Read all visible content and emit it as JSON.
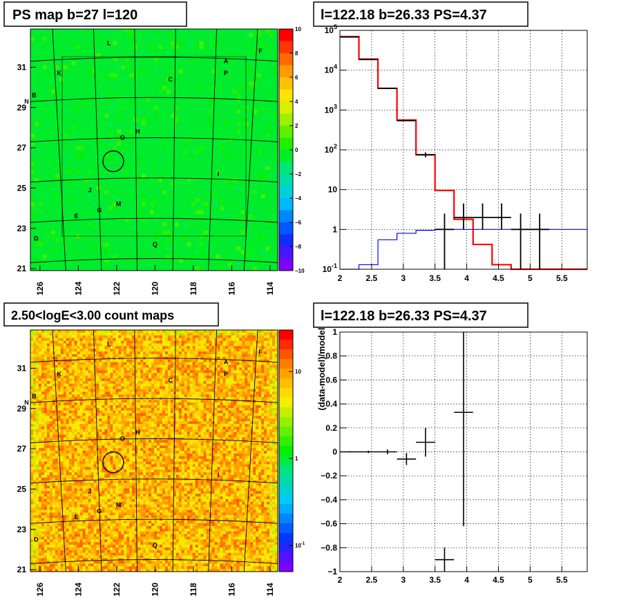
{
  "panels": {
    "ps_map": {
      "title": "PS map b=27 l=120",
      "xticks": [
        "126",
        "124",
        "122",
        "120",
        "118",
        "116",
        "114"
      ],
      "yticks": [
        "31",
        "29",
        "27",
        "25",
        "23",
        "21"
      ],
      "colorbar_ticks": [
        "10",
        "8",
        "6",
        "4",
        "2",
        "0",
        "−2",
        "−4",
        "−6",
        "−8",
        "−10"
      ],
      "source_labels": [
        {
          "t": "L",
          "l": 122.4,
          "b": 32.1
        },
        {
          "t": "F",
          "l": 114.5,
          "b": 31.7
        },
        {
          "t": "A",
          "l": 116.3,
          "b": 31.2
        },
        {
          "t": "K",
          "l": 125.0,
          "b": 30.6
        },
        {
          "t": "P",
          "l": 116.3,
          "b": 30.6
        },
        {
          "t": "C",
          "l": 119.2,
          "b": 30.3
        },
        {
          "t": "B",
          "l": 126.3,
          "b": 29.5
        },
        {
          "t": "N",
          "l": 126.7,
          "b": 29.2
        },
        {
          "t": "H",
          "l": 120.9,
          "b": 27.7
        },
        {
          "t": "O",
          "l": 121.7,
          "b": 27.4
        },
        {
          "t": "I",
          "l": 116.7,
          "b": 25.6
        },
        {
          "t": "J",
          "l": 123.4,
          "b": 24.8
        },
        {
          "t": "G",
          "l": 122.9,
          "b": 23.8
        },
        {
          "t": "M",
          "l": 121.9,
          "b": 24.1
        },
        {
          "t": "E",
          "l": 124.1,
          "b": 23.5
        },
        {
          "t": "D",
          "l": 126.2,
          "b": 22.4
        },
        {
          "t": "Q",
          "l": 120.0,
          "b": 22.1
        }
      ],
      "marker": {
        "l": 122.18,
        "b": 26.33
      }
    },
    "spectrum": {
      "title": "l=122.18 b=26.33 PS=4.37"
    },
    "count_map": {
      "title": "2.50<logE<3.00 count maps",
      "colorbar_ticks": [
        {
          "t": "10",
          "v": 10
        },
        {
          "t": "1",
          "v": 1
        }
      ],
      "colorbar_exp": {
        "base": "10",
        "exp": "-1"
      }
    },
    "residual": {
      "title": "l=122.18 b=26.33 PS=4.37"
    }
  },
  "chart_data": [
    {
      "type": "heatmap",
      "title": "PS map b=27 l=120",
      "xlabel": "",
      "ylabel": "",
      "xlim": [
        126.5,
        113.6
      ],
      "ylim": [
        20.9,
        32.9
      ],
      "zlim": [
        -10,
        10
      ],
      "colorscale": "rainbow",
      "background_value": 0.5
    },
    {
      "type": "line",
      "title": "l=122.18 b=26.33 PS=4.37",
      "xlim": [
        2,
        5.9
      ],
      "ylim": [
        0.1,
        100000
      ],
      "ylog": true,
      "xticks": [
        "2",
        "2.5",
        "3",
        "3.5",
        "4",
        "4.5",
        "5",
        "5.5"
      ],
      "yticks": [
        {
          "v": 0.1,
          "base": "10",
          "exp": "-1"
        },
        {
          "v": 1,
          "t": "1"
        },
        {
          "v": 10,
          "t": "10"
        },
        {
          "v": 100,
          "base": "10",
          "exp": "2"
        },
        {
          "v": 1000,
          "base": "10",
          "exp": "3"
        },
        {
          "v": 10000,
          "base": "10",
          "exp": "4"
        },
        {
          "v": 100000,
          "base": "10",
          "exp": "5"
        }
      ],
      "bin_edges": [
        2.0,
        2.3,
        2.6,
        2.9,
        3.2,
        3.5,
        3.8,
        4.1,
        4.4,
        4.7,
        5.0,
        5.3,
        5.6,
        5.9
      ],
      "series": [
        {
          "color": "#ff0000",
          "values": [
            70000,
            19000,
            3500,
            560,
            75,
            9.5,
            1.8,
            0.42,
            0.13,
            0.1,
            0.1,
            0.1,
            0.1
          ]
        },
        {
          "color": "#0000ff",
          "values": [
            0.1,
            0.13,
            0.55,
            0.8,
            0.95,
            1.0,
            1.0,
            1.0,
            1.0,
            1.0,
            1.0,
            1.0,
            1.0
          ]
        }
      ],
      "data_points": [
        {
          "x": 2.15,
          "y": 68000,
          "xe": 0.15,
          "lo": 0,
          "hi": 0
        },
        {
          "x": 2.45,
          "y": 18500,
          "xe": 0.15,
          "lo": 0,
          "hi": 0
        },
        {
          "x": 2.75,
          "y": 3500,
          "xe": 0.15,
          "lo": 0,
          "hi": 0
        },
        {
          "x": 3.05,
          "y": 540,
          "xe": 0.15,
          "lo": 0,
          "hi": 0
        },
        {
          "x": 3.35,
          "y": 75,
          "xe": 0.15,
          "lo": 65,
          "hi": 86
        },
        {
          "x": 3.65,
          "y": 1.0,
          "xe": 0.15,
          "lo": 0.1,
          "hi": 2.5
        },
        {
          "x": 3.95,
          "y": 2.0,
          "xe": 0.15,
          "lo": 1.0,
          "hi": 4.5
        },
        {
          "x": 4.25,
          "y": 2.0,
          "xe": 0.15,
          "lo": 1.0,
          "hi": 4.5
        },
        {
          "x": 4.55,
          "y": 2.0,
          "xe": 0.15,
          "lo": 1.0,
          "hi": 4.5
        },
        {
          "x": 4.85,
          "y": 1.0,
          "xe": 0.15,
          "lo": 0.1,
          "hi": 2.5
        },
        {
          "x": 5.15,
          "y": 1.0,
          "xe": 0.15,
          "lo": 0.1,
          "hi": 2.5
        }
      ]
    },
    {
      "type": "heatmap",
      "title": "2.50<logE<3.00 count maps",
      "xlim": [
        126.5,
        113.6
      ],
      "ylim": [
        20.9,
        32.9
      ],
      "zlim": [
        0.05,
        30
      ],
      "zlog": true,
      "colorscale": "rainbow"
    },
    {
      "type": "scatter",
      "title": "l=122.18 b=26.33 PS=4.37",
      "ylabel": "(data-model)/model",
      "xlim": [
        2,
        5.9
      ],
      "ylim": [
        -1,
        1
      ],
      "xticks": [
        "2",
        "2.5",
        "3",
        "3.5",
        "4",
        "4.5",
        "5",
        "5.5"
      ],
      "yticks": [
        "1",
        "0.8",
        "0.6",
        "0.4",
        "0.2",
        "0",
        "−0.2",
        "−0.4",
        "−0.6",
        "−0.8",
        "−1"
      ],
      "data_points": [
        {
          "x": 2.15,
          "y": 0.0,
          "xe": 0.15,
          "ye": 0.005
        },
        {
          "x": 2.45,
          "y": 0.0,
          "xe": 0.15,
          "ye": 0.01
        },
        {
          "x": 2.75,
          "y": 0.0,
          "xe": 0.15,
          "ye": 0.02
        },
        {
          "x": 3.05,
          "y": -0.06,
          "xe": 0.15,
          "ye": 0.05
        },
        {
          "x": 3.35,
          "y": 0.08,
          "xe": 0.15,
          "ye": 0.12
        },
        {
          "x": 3.65,
          "y": -0.9,
          "xe": 0.15,
          "ye": 0.1
        },
        {
          "x": 3.95,
          "y": 0.33,
          "xe": 0.15,
          "ye": 0.95
        }
      ]
    }
  ]
}
